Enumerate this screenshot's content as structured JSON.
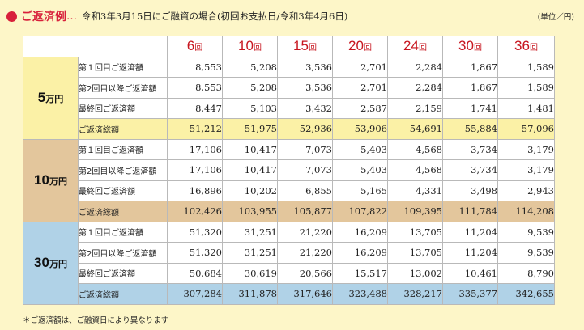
{
  "header": {
    "title": "ご返済例",
    "dots": "…",
    "note": "令和3年3月15日にご融資の場合(初回お支払日/令和3年4月6日)",
    "unit": "(単位／円)"
  },
  "colors": {
    "accent": "#d8203a"
  },
  "table": {
    "terms": [
      {
        "num": "6",
        "kai": "回"
      },
      {
        "num": "10",
        "kai": "回"
      },
      {
        "num": "15",
        "kai": "回"
      },
      {
        "num": "20",
        "kai": "回"
      },
      {
        "num": "24",
        "kai": "回"
      },
      {
        "num": "30",
        "kai": "回"
      },
      {
        "num": "36",
        "kai": "回"
      }
    ],
    "groups": [
      {
        "amount": "5",
        "unit": "万円",
        "rows": [
          {
            "label": "第１回目ご返済額",
            "values": [
              "8,553",
              "5,208",
              "3,536",
              "2,701",
              "2,284",
              "1,867",
              "1,589"
            ]
          },
          {
            "label": "第2回目以降ご返済額",
            "values": [
              "8,553",
              "5,208",
              "3,536",
              "2,701",
              "2,284",
              "1,867",
              "1,589"
            ]
          },
          {
            "label": "最終回ご返済額",
            "values": [
              "8,447",
              "5,103",
              "3,432",
              "2,587",
              "2,159",
              "1,741",
              "1,481"
            ]
          },
          {
            "label": "ご返済総額",
            "values": [
              "51,212",
              "51,975",
              "52,936",
              "53,906",
              "54,691",
              "55,884",
              "57,096"
            ]
          }
        ]
      },
      {
        "amount": "10",
        "unit": "万円",
        "rows": [
          {
            "label": "第１回目ご返済額",
            "values": [
              "17,106",
              "10,417",
              "7,073",
              "5,403",
              "4,568",
              "3,734",
              "3,179"
            ]
          },
          {
            "label": "第2回目以降ご返済額",
            "values": [
              "17,106",
              "10,417",
              "7,073",
              "5,403",
              "4,568",
              "3,734",
              "3,179"
            ]
          },
          {
            "label": "最終回ご返済額",
            "values": [
              "16,896",
              "10,202",
              "6,855",
              "5,165",
              "4,331",
              "3,498",
              "2,943"
            ]
          },
          {
            "label": "ご返済総額",
            "values": [
              "102,426",
              "103,955",
              "105,877",
              "107,822",
              "109,395",
              "111,784",
              "114,208"
            ]
          }
        ]
      },
      {
        "amount": "30",
        "unit": "万円",
        "rows": [
          {
            "label": "第１回目ご返済額",
            "values": [
              "51,320",
              "31,251",
              "21,220",
              "16,209",
              "13,705",
              "11,204",
              "9,539"
            ]
          },
          {
            "label": "第2回目以降ご返済額",
            "values": [
              "51,320",
              "31,251",
              "21,220",
              "16,209",
              "13,705",
              "11,204",
              "9,539"
            ]
          },
          {
            "label": "最終回ご返済額",
            "values": [
              "50,684",
              "30,619",
              "20,566",
              "15,517",
              "13,002",
              "10,461",
              "8,790"
            ]
          },
          {
            "label": "ご返済総額",
            "values": [
              "307,284",
              "311,878",
              "317,646",
              "323,488",
              "328,217",
              "335,377",
              "342,655"
            ]
          }
        ]
      }
    ]
  },
  "footnote": "＊ご返済額は、ご融資日により異なります"
}
